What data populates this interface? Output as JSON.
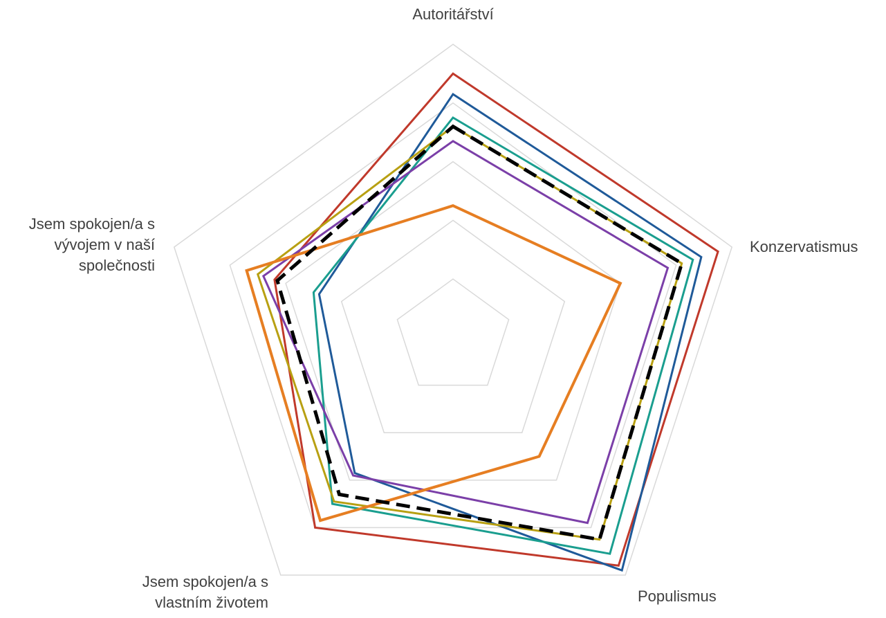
{
  "chart_data": {
    "type": "radar",
    "axes": [
      "Autoritářství",
      "Konzervatismus",
      "Populismus",
      "Jsem spokojen/a s vlastním životem",
      "Jsem spokojen/a s vývojem v naší společnosti"
    ],
    "axis_label_lines": [
      [
        "Autoritářství"
      ],
      [
        "Konzervatismus"
      ],
      [
        "Populismus"
      ],
      [
        "Jsem spokojen/a s",
        "vlastním životem"
      ],
      [
        "Jsem spokojen/a s",
        "vývojem v naší",
        "společnosti"
      ]
    ],
    "r_range": [
      0,
      5
    ],
    "gridline_levels": [
      1,
      2,
      3,
      4,
      5
    ],
    "grid": true,
    "legend": "none",
    "series": [
      {
        "color": "#c0392b",
        "style": "solid",
        "values": [
          4.5,
          4.75,
          4.8,
          4.0,
          3.2
        ]
      },
      {
        "color": "#1f5a99",
        "style": "solid",
        "values": [
          4.15,
          4.45,
          4.9,
          2.85,
          2.4
        ]
      },
      {
        "color": "#1a9e8f",
        "style": "solid",
        "values": [
          3.75,
          4.3,
          4.55,
          3.5,
          2.5
        ]
      },
      {
        "color": "#7b3fa8",
        "style": "solid",
        "values": [
          3.35,
          3.85,
          3.9,
          2.9,
          3.4
        ]
      },
      {
        "color": "#b8a012",
        "style": "solid",
        "values": [
          3.6,
          4.1,
          4.25,
          3.45,
          3.5
        ]
      },
      {
        "color": "#e67e22",
        "style": "solid",
        "values": [
          2.25,
          3.0,
          2.5,
          3.85,
          3.7
        ]
      },
      {
        "color": "#000000",
        "style": "dashed",
        "values": [
          3.6,
          4.1,
          4.25,
          3.3,
          3.15
        ]
      }
    ]
  }
}
